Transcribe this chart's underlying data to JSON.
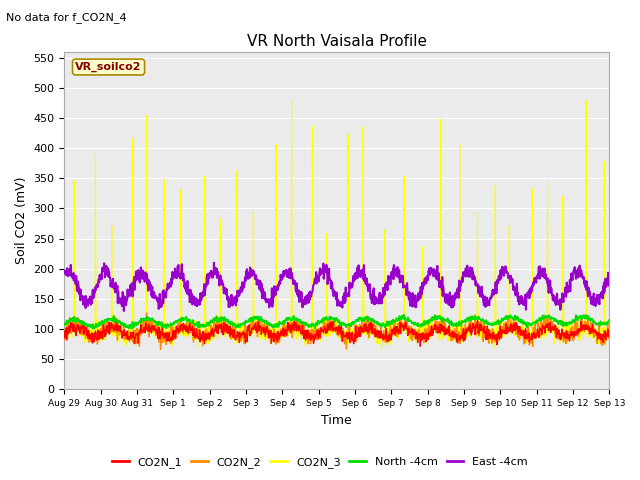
{
  "title": "VR North Vaisala Profile",
  "subtitle": "No data for f_CO2N_4",
  "ylabel": "Soil CO2 (mV)",
  "xlabel": "Time",
  "annotation": "VR_soilco2",
  "ylim": [
    0,
    560
  ],
  "yticks": [
    0,
    50,
    100,
    150,
    200,
    250,
    300,
    350,
    400,
    450,
    500,
    550
  ],
  "bg_color": "#ebebeb",
  "legend_entries": [
    "CO2N_1",
    "CO2N_2",
    "CO2N_3",
    "North -4cm",
    "East -4cm"
  ],
  "line_colors": [
    "#ff0000",
    "#ff8c00",
    "#ffff00",
    "#00dd00",
    "#9900cc"
  ],
  "line_widths": [
    1.0,
    1.0,
    0.8,
    1.2,
    1.5
  ],
  "xtick_labels": [
    "Aug 29",
    "Aug 30",
    "Aug 31",
    "Sep 1",
    "Sep 2",
    "Sep 3",
    "Sep 4",
    "Sep 5",
    "Sep 6",
    "Sep 7",
    "Sep 8",
    "Sep 9",
    "Sep 10",
    "Sep 11",
    "Sep 12",
    "Sep 13"
  ],
  "xtick_positions": [
    0,
    1,
    2,
    3,
    4,
    5,
    6,
    7,
    8,
    9,
    10,
    11,
    12,
    13,
    14,
    15
  ]
}
